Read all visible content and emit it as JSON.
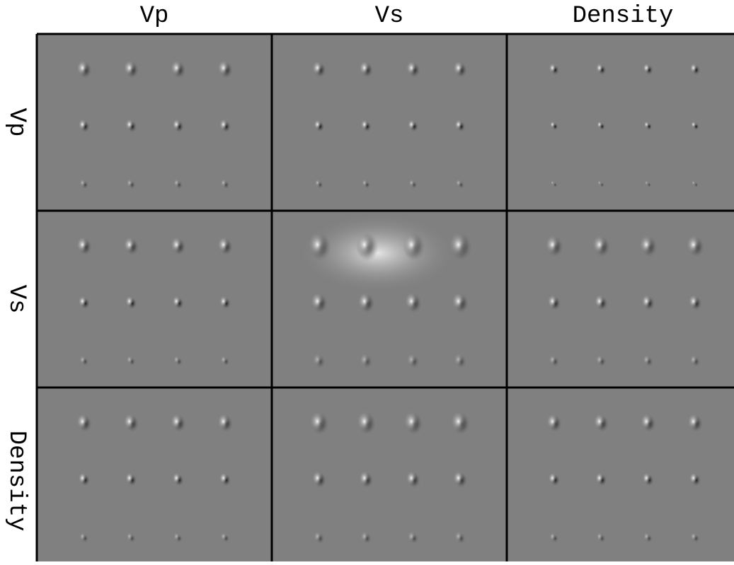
{
  "column_labels": [
    "Vp",
    "Vs",
    "Density"
  ],
  "row_labels": [
    "Vp",
    "Vs",
    "Density"
  ]
}
